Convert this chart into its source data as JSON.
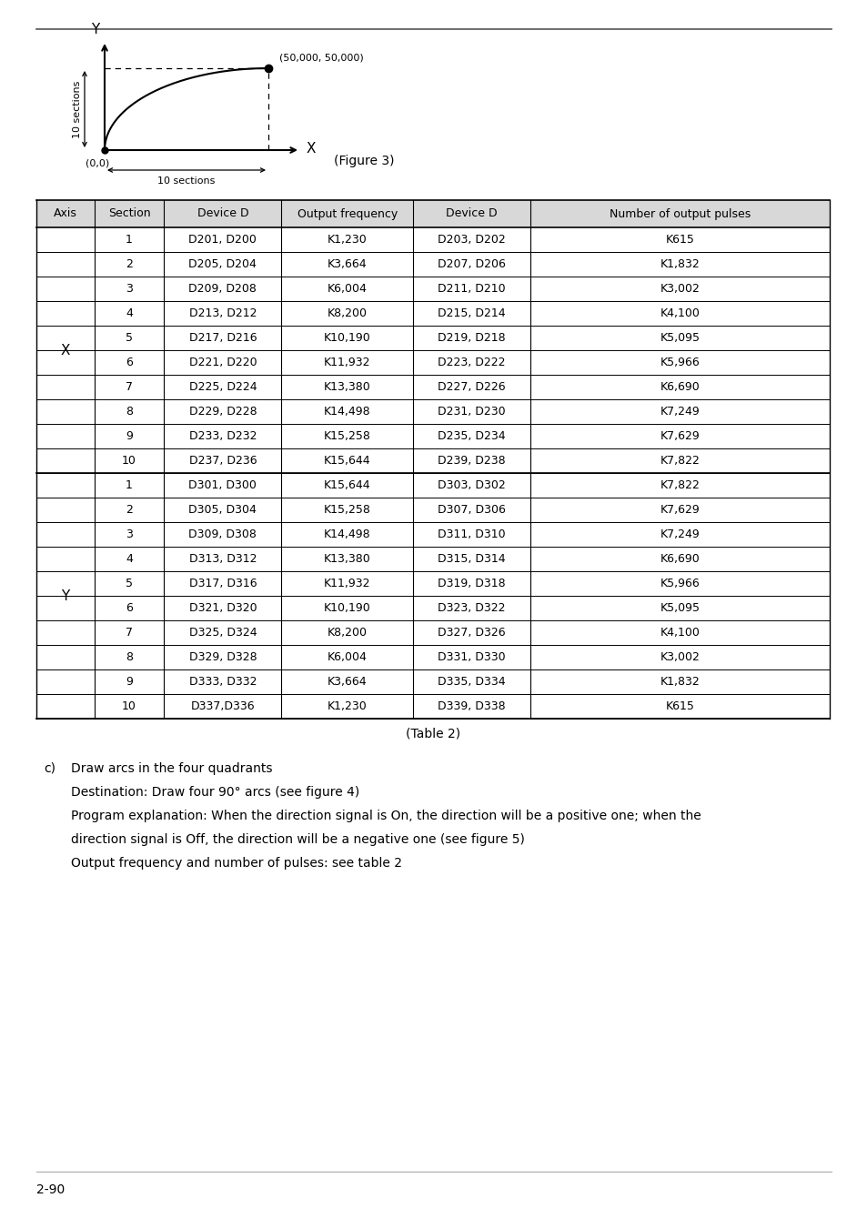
{
  "page_number": "2-90",
  "figure_caption": "(Figure 3)",
  "table_caption": "(Table 2)",
  "section_c_label": "c)",
  "section_c_text1": "Draw arcs in the four quadrants",
  "section_c_text2": "Destination: Draw four 90° arcs (see figure 4)",
  "section_c_text3": "Program explanation: When the direction signal is On, the direction will be a positive one; when the",
  "section_c_text4": "direction signal is Off, the direction will be a negative one (see figure 5)",
  "section_c_text5": "Output frequency and number of pulses: see table 2",
  "table_headers": [
    "Axis",
    "Section",
    "Device D",
    "Output frequency",
    "Device D",
    "Number of output pulses"
  ],
  "x_rows": [
    [
      "1",
      "D201, D200",
      "K1,230",
      "D203, D202",
      "K615"
    ],
    [
      "2",
      "D205, D204",
      "K3,664",
      "D207, D206",
      "K1,832"
    ],
    [
      "3",
      "D209, D208",
      "K6,004",
      "D211, D210",
      "K3,002"
    ],
    [
      "4",
      "D213, D212",
      "K8,200",
      "D215, D214",
      "K4,100"
    ],
    [
      "5",
      "D217, D216",
      "K10,190",
      "D219, D218",
      "K5,095"
    ],
    [
      "6",
      "D221, D220",
      "K11,932",
      "D223, D222",
      "K5,966"
    ],
    [
      "7",
      "D225, D224",
      "K13,380",
      "D227, D226",
      "K6,690"
    ],
    [
      "8",
      "D229, D228",
      "K14,498",
      "D231, D230",
      "K7,249"
    ],
    [
      "9",
      "D233, D232",
      "K15,258",
      "D235, D234",
      "K7,629"
    ],
    [
      "10",
      "D237, D236",
      "K15,644",
      "D239, D238",
      "K7,822"
    ]
  ],
  "y_rows": [
    [
      "1",
      "D301, D300",
      "K15,644",
      "D303, D302",
      "K7,822"
    ],
    [
      "2",
      "D305, D304",
      "K15,258",
      "D307, D306",
      "K7,629"
    ],
    [
      "3",
      "D309, D308",
      "K14,498",
      "D311, D310",
      "K7,249"
    ],
    [
      "4",
      "D313, D312",
      "K13,380",
      "D315, D314",
      "K6,690"
    ],
    [
      "5",
      "D317, D316",
      "K11,932",
      "D319, D318",
      "K5,966"
    ],
    [
      "6",
      "D321, D320",
      "K10,190",
      "D323, D322",
      "K5,095"
    ],
    [
      "7",
      "D325, D324",
      "K8,200",
      "D327, D326",
      "K4,100"
    ],
    [
      "8",
      "D329, D328",
      "K6,004",
      "D331, D330",
      "K3,002"
    ],
    [
      "9",
      "D333, D332",
      "K3,664",
      "D335, D334",
      "K1,832"
    ],
    [
      "10",
      "D337,D336",
      "K1,230",
      "D339, D338",
      "K615"
    ]
  ],
  "bg_color": "#ffffff",
  "table_border_color": "#000000",
  "header_bg": "#d8d8d8",
  "text_color": "#000000"
}
